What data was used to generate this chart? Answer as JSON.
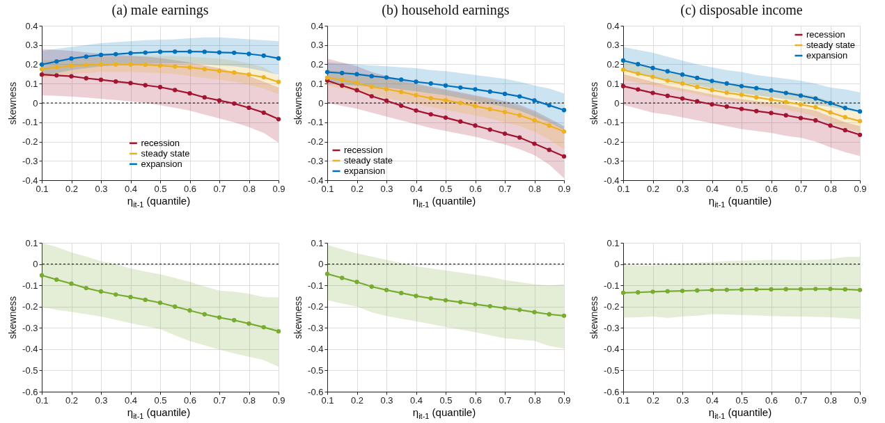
{
  "chart_data": [
    {
      "type": "line",
      "title": "(a) male earnings",
      "xlabel": "η$_{it-1}$ (quantile)",
      "ylabel": "skewness",
      "x": [
        0.1,
        0.15,
        0.2,
        0.25,
        0.3,
        0.35,
        0.4,
        0.45,
        0.5,
        0.55,
        0.6,
        0.65,
        0.7,
        0.75,
        0.8,
        0.85,
        0.9
      ],
      "xlim": [
        0.1,
        0.9
      ],
      "xticks": [
        0.1,
        0.2,
        0.3,
        0.4,
        0.5,
        0.6,
        0.7,
        0.8,
        0.9
      ],
      "ylim": [
        -0.4,
        0.4
      ],
      "yticks": [
        -0.4,
        -0.3,
        -0.2,
        -0.1,
        0,
        0.1,
        0.2,
        0.3,
        0.4
      ],
      "grid": true,
      "marker": "circle",
      "legend": "bottom",
      "ref_lines": [
        {
          "axis": "y",
          "value": 0,
          "color": "#000000",
          "line_style": "dashed"
        }
      ],
      "series": [
        {
          "name": "recession",
          "color": "#a2142f",
          "values": [
            0.147,
            0.143,
            0.138,
            0.128,
            0.12,
            0.111,
            0.103,
            0.092,
            0.082,
            0.067,
            0.05,
            0.029,
            0.013,
            -0.003,
            -0.025,
            -0.05,
            -0.084
          ],
          "upper": [
            0.28,
            0.275,
            0.27,
            0.262,
            0.255,
            0.25,
            0.245,
            0.24,
            0.232,
            0.222,
            0.21,
            0.195,
            0.18,
            0.16,
            0.14,
            0.11,
            0.08
          ],
          "lower": [
            0.04,
            0.037,
            0.033,
            0.028,
            0.022,
            0.015,
            0.008,
            0.0,
            -0.012,
            -0.025,
            -0.04,
            -0.06,
            -0.08,
            -0.1,
            -0.125,
            -0.155,
            -0.205
          ]
        },
        {
          "name": "steady state",
          "color": "#edb120",
          "values": [
            0.175,
            0.185,
            0.192,
            0.197,
            0.199,
            0.199,
            0.199,
            0.198,
            0.194,
            0.189,
            0.184,
            0.175,
            0.166,
            0.158,
            0.147,
            0.133,
            0.109
          ],
          "upper": [
            0.22,
            0.225,
            0.23,
            0.235,
            0.238,
            0.24,
            0.242,
            0.243,
            0.243,
            0.243,
            0.24,
            0.235,
            0.23,
            0.22,
            0.205,
            0.185,
            0.14
          ],
          "lower": [
            0.13,
            0.14,
            0.15,
            0.155,
            0.16,
            0.16,
            0.16,
            0.158,
            0.155,
            0.15,
            0.14,
            0.13,
            0.12,
            0.11,
            0.095,
            0.075,
            0.045
          ]
        },
        {
          "name": "expansion",
          "color": "#0072bd",
          "values": [
            0.199,
            0.215,
            0.23,
            0.24,
            0.249,
            0.253,
            0.258,
            0.261,
            0.265,
            0.266,
            0.266,
            0.265,
            0.262,
            0.26,
            0.254,
            0.245,
            0.231
          ],
          "upper": [
            0.27,
            0.28,
            0.29,
            0.3,
            0.31,
            0.315,
            0.32,
            0.325,
            0.328,
            0.33,
            0.335,
            0.34,
            0.34,
            0.335,
            0.33,
            0.325,
            0.32
          ],
          "lower": [
            0.14,
            0.155,
            0.17,
            0.18,
            0.19,
            0.195,
            0.2,
            0.203,
            0.205,
            0.205,
            0.205,
            0.2,
            0.195,
            0.19,
            0.18,
            0.165,
            0.145
          ]
        }
      ]
    },
    {
      "type": "line",
      "title": "(b) household earnings",
      "xlabel": "η$_{it-1}$ (quantile)",
      "ylabel": "skewness",
      "x": [
        0.1,
        0.15,
        0.2,
        0.25,
        0.3,
        0.35,
        0.4,
        0.45,
        0.5,
        0.55,
        0.6,
        0.65,
        0.7,
        0.75,
        0.8,
        0.85,
        0.9
      ],
      "xlim": [
        0.1,
        0.9
      ],
      "xticks": [
        0.1,
        0.2,
        0.3,
        0.4,
        0.5,
        0.6,
        0.7,
        0.8,
        0.9
      ],
      "ylim": [
        -0.4,
        0.4
      ],
      "yticks": [
        -0.4,
        -0.3,
        -0.2,
        -0.1,
        0,
        0.1,
        0.2,
        0.3,
        0.4
      ],
      "grid": true,
      "marker": "circle",
      "legend": "bottom left",
      "ref_lines": [
        {
          "axis": "y",
          "value": 0,
          "color": "#000000",
          "line_style": "dashed"
        }
      ],
      "series": [
        {
          "name": "recession",
          "color": "#a2142f",
          "values": [
            0.116,
            0.09,
            0.066,
            0.035,
            0.012,
            -0.014,
            -0.039,
            -0.059,
            -0.076,
            -0.096,
            -0.117,
            -0.138,
            -0.159,
            -0.179,
            -0.211,
            -0.243,
            -0.277
          ],
          "upper": [
            0.23,
            0.21,
            0.19,
            0.16,
            0.14,
            0.12,
            0.1,
            0.085,
            0.07,
            0.055,
            0.04,
            0.025,
            0.01,
            -0.01,
            -0.04,
            -0.08,
            -0.12
          ],
          "lower": [
            0.0,
            -0.015,
            -0.03,
            -0.05,
            -0.07,
            -0.09,
            -0.11,
            -0.13,
            -0.145,
            -0.16,
            -0.175,
            -0.195,
            -0.215,
            -0.24,
            -0.27,
            -0.32,
            -0.39
          ]
        },
        {
          "name": "steady state",
          "color": "#edb120",
          "values": [
            0.131,
            0.119,
            0.104,
            0.084,
            0.072,
            0.057,
            0.04,
            0.025,
            0.014,
            0,
            -0.016,
            -0.032,
            -0.047,
            -0.064,
            -0.09,
            -0.117,
            -0.148
          ],
          "upper": [
            0.17,
            0.165,
            0.155,
            0.14,
            0.125,
            0.11,
            0.095,
            0.08,
            0.065,
            0.05,
            0.035,
            0.02,
            0.0,
            -0.02,
            -0.05,
            -0.09,
            -0.13
          ],
          "lower": [
            0.09,
            0.075,
            0.06,
            0.04,
            0.025,
            0.01,
            -0.005,
            -0.02,
            -0.035,
            -0.05,
            -0.065,
            -0.08,
            -0.1,
            -0.12,
            -0.15,
            -0.19,
            -0.24
          ]
        },
        {
          "name": "expansion",
          "color": "#0072bd",
          "values": [
            0.16,
            0.155,
            0.149,
            0.139,
            0.132,
            0.121,
            0.11,
            0.101,
            0.09,
            0.08,
            0.071,
            0.059,
            0.047,
            0.034,
            0.013,
            -0.012,
            -0.037
          ],
          "upper": [
            0.21,
            0.205,
            0.2,
            0.195,
            0.19,
            0.185,
            0.18,
            0.17,
            0.165,
            0.155,
            0.145,
            0.135,
            0.125,
            0.11,
            0.09,
            0.075,
            0.05
          ],
          "lower": [
            0.1,
            0.095,
            0.09,
            0.085,
            0.08,
            0.07,
            0.06,
            0.05,
            0.04,
            0.025,
            0.01,
            -0.005,
            -0.02,
            -0.04,
            -0.07,
            -0.1,
            -0.14
          ]
        }
      ]
    },
    {
      "type": "line",
      "title": "(c) disposable income",
      "xlabel": "η$_{it-1}$ (quantile)",
      "ylabel": "skewness",
      "x": [
        0.1,
        0.15,
        0.2,
        0.25,
        0.3,
        0.35,
        0.4,
        0.45,
        0.5,
        0.55,
        0.6,
        0.65,
        0.7,
        0.75,
        0.8,
        0.85,
        0.9
      ],
      "xlim": [
        0.1,
        0.9
      ],
      "xticks": [
        0.1,
        0.2,
        0.3,
        0.4,
        0.5,
        0.6,
        0.7,
        0.8,
        0.9
      ],
      "ylim": [
        -0.4,
        0.4
      ],
      "yticks": [
        -0.4,
        -0.3,
        -0.2,
        -0.1,
        0,
        0.1,
        0.2,
        0.3,
        0.4
      ],
      "grid": true,
      "marker": "circle",
      "legend": "top right",
      "ref_lines": [
        {
          "axis": "y",
          "value": 0,
          "color": "#000000",
          "line_style": "dashed"
        }
      ],
      "series": [
        {
          "name": "recession",
          "color": "#a2142f",
          "values": [
            0.087,
            0.07,
            0.052,
            0.037,
            0.023,
            0.008,
            -0.007,
            -0.019,
            -0.031,
            -0.042,
            -0.052,
            -0.064,
            -0.078,
            -0.09,
            -0.117,
            -0.141,
            -0.165
          ],
          "upper": [
            0.15,
            0.13,
            0.11,
            0.09,
            0.075,
            0.06,
            0.045,
            0.03,
            0.02,
            0.01,
            0.0,
            -0.01,
            -0.025,
            -0.04,
            -0.07,
            -0.1,
            -0.12
          ],
          "lower": [
            -0.01,
            -0.03,
            -0.05,
            -0.06,
            -0.075,
            -0.09,
            -0.105,
            -0.12,
            -0.135,
            -0.145,
            -0.155,
            -0.17,
            -0.18,
            -0.2,
            -0.23,
            -0.255,
            -0.275
          ]
        },
        {
          "name": "steady state",
          "color": "#edb120",
          "values": [
            0.172,
            0.152,
            0.135,
            0.116,
            0.101,
            0.083,
            0.067,
            0.053,
            0.042,
            0.029,
            0.017,
            0.005,
            -0.008,
            -0.022,
            -0.049,
            -0.074,
            -0.094
          ],
          "upper": [
            0.22,
            0.2,
            0.18,
            0.165,
            0.15,
            0.13,
            0.115,
            0.1,
            0.09,
            0.08,
            0.07,
            0.06,
            0.05,
            0.035,
            0.01,
            -0.02,
            -0.04
          ],
          "lower": [
            0.12,
            0.105,
            0.09,
            0.075,
            0.06,
            0.045,
            0.03,
            0.015,
            0.005,
            -0.01,
            -0.02,
            -0.035,
            -0.05,
            -0.07,
            -0.1,
            -0.13,
            -0.15
          ]
        },
        {
          "name": "expansion",
          "color": "#0072bd",
          "values": [
            0.22,
            0.201,
            0.181,
            0.164,
            0.147,
            0.13,
            0.114,
            0.101,
            0.087,
            0.077,
            0.065,
            0.052,
            0.038,
            0.023,
            -0.001,
            -0.026,
            -0.044
          ],
          "upper": [
            0.29,
            0.275,
            0.26,
            0.24,
            0.22,
            0.2,
            0.185,
            0.17,
            0.16,
            0.145,
            0.135,
            0.125,
            0.115,
            0.1,
            0.08,
            0.07,
            0.055
          ],
          "lower": [
            0.17,
            0.15,
            0.135,
            0.12,
            0.105,
            0.09,
            0.075,
            0.06,
            0.05,
            0.04,
            0.03,
            0.02,
            0.01,
            -0.01,
            -0.02,
            -0.035,
            -0.05
          ]
        }
      ]
    },
    {
      "type": "line",
      "xlabel": "η$_{it-1}$ (quantile)",
      "ylabel": "skewness",
      "x": [
        0.1,
        0.15,
        0.2,
        0.25,
        0.3,
        0.35,
        0.4,
        0.45,
        0.5,
        0.55,
        0.6,
        0.65,
        0.7,
        0.75,
        0.8,
        0.85,
        0.9
      ],
      "xlim": [
        0.1,
        0.9
      ],
      "xticks": [
        0.1,
        0.2,
        0.3,
        0.4,
        0.5,
        0.6,
        0.7,
        0.8,
        0.9
      ],
      "ylim": [
        -0.6,
        0.1
      ],
      "yticks": [
        -0.6,
        -0.5,
        -0.4,
        -0.3,
        -0.2,
        -0.1,
        0,
        0.1
      ],
      "grid": true,
      "marker": "circle",
      "ref_lines": [
        {
          "axis": "y",
          "value": 0,
          "color": "#000000",
          "line_style": "dashed"
        }
      ],
      "series": [
        {
          "color": "#77ac30",
          "values": [
            -0.053,
            -0.073,
            -0.092,
            -0.113,
            -0.129,
            -0.143,
            -0.155,
            -0.168,
            -0.182,
            -0.2,
            -0.218,
            -0.236,
            -0.251,
            -0.264,
            -0.28,
            -0.297,
            -0.316
          ],
          "upper": [
            0.1,
            0.08,
            0.055,
            0.035,
            0.013,
            0.0,
            -0.02,
            -0.035,
            -0.048,
            -0.065,
            -0.083,
            -0.105,
            -0.125,
            -0.13,
            -0.14,
            -0.155,
            -0.157
          ],
          "lower": [
            -0.203,
            -0.215,
            -0.225,
            -0.235,
            -0.247,
            -0.262,
            -0.278,
            -0.292,
            -0.306,
            -0.335,
            -0.362,
            -0.382,
            -0.402,
            -0.42,
            -0.436,
            -0.451,
            -0.483
          ]
        }
      ]
    },
    {
      "type": "line",
      "xlabel": "η$_{it-1}$ (quantile)",
      "ylabel": "skewness",
      "x": [
        0.1,
        0.15,
        0.2,
        0.25,
        0.3,
        0.35,
        0.4,
        0.45,
        0.5,
        0.55,
        0.6,
        0.65,
        0.7,
        0.75,
        0.8,
        0.85,
        0.9
      ],
      "xlim": [
        0.1,
        0.9
      ],
      "xticks": [
        0.1,
        0.2,
        0.3,
        0.4,
        0.5,
        0.6,
        0.7,
        0.8,
        0.9
      ],
      "ylim": [
        -0.6,
        0.1
      ],
      "yticks": [
        -0.6,
        -0.5,
        -0.4,
        -0.3,
        -0.2,
        -0.1,
        0,
        0.1
      ],
      "grid": true,
      "marker": "circle",
      "ref_lines": [
        {
          "axis": "y",
          "value": 0,
          "color": "#000000",
          "line_style": "dashed"
        }
      ],
      "series": [
        {
          "color": "#77ac30",
          "values": [
            -0.046,
            -0.065,
            -0.084,
            -0.106,
            -0.122,
            -0.136,
            -0.15,
            -0.161,
            -0.17,
            -0.179,
            -0.189,
            -0.198,
            -0.207,
            -0.215,
            -0.226,
            -0.236,
            -0.243
          ],
          "upper": [
            0.09,
            0.07,
            0.05,
            0.035,
            0.02,
            0.005,
            -0.01,
            -0.02,
            -0.03,
            -0.04,
            -0.05,
            -0.06,
            -0.075,
            -0.085,
            -0.095,
            -0.1,
            -0.095
          ],
          "lower": [
            -0.17,
            -0.185,
            -0.2,
            -0.226,
            -0.244,
            -0.257,
            -0.269,
            -0.282,
            -0.296,
            -0.308,
            -0.32,
            -0.335,
            -0.349,
            -0.355,
            -0.361,
            -0.385,
            -0.397
          ]
        }
      ]
    },
    {
      "type": "line",
      "xlabel": "η$_{it-1}$ (quantile)",
      "ylabel": "skewness",
      "x": [
        0.1,
        0.15,
        0.2,
        0.25,
        0.3,
        0.35,
        0.4,
        0.45,
        0.5,
        0.55,
        0.6,
        0.65,
        0.7,
        0.75,
        0.8,
        0.85,
        0.9
      ],
      "xlim": [
        0.1,
        0.9
      ],
      "xticks": [
        0.1,
        0.2,
        0.3,
        0.4,
        0.5,
        0.6,
        0.7,
        0.8,
        0.9
      ],
      "ylim": [
        -0.6,
        0.1
      ],
      "yticks": [
        -0.6,
        -0.5,
        -0.4,
        -0.3,
        -0.2,
        -0.1,
        0,
        0.1
      ],
      "grid": true,
      "marker": "circle",
      "ref_lines": [
        {
          "axis": "y",
          "value": 0,
          "color": "#000000",
          "line_style": "dashed"
        }
      ],
      "series": [
        {
          "color": "#77ac30",
          "values": [
            -0.135,
            -0.133,
            -0.13,
            -0.128,
            -0.126,
            -0.124,
            -0.122,
            -0.121,
            -0.12,
            -0.119,
            -0.119,
            -0.118,
            -0.118,
            -0.117,
            -0.117,
            -0.119,
            -0.122
          ],
          "upper": [
            -0.005,
            -0.007,
            -0.007,
            -0.002,
            0.003,
            0.007,
            0.01,
            0.014,
            0.016,
            0.018,
            0.02,
            0.02,
            0.018,
            0.02,
            0.023,
            0.034,
            0.034
          ],
          "lower": [
            -0.252,
            -0.25,
            -0.247,
            -0.253,
            -0.247,
            -0.243,
            -0.235,
            -0.237,
            -0.239,
            -0.241,
            -0.244,
            -0.246,
            -0.247,
            -0.248,
            -0.25,
            -0.254,
            -0.26
          ]
        }
      ]
    }
  ]
}
